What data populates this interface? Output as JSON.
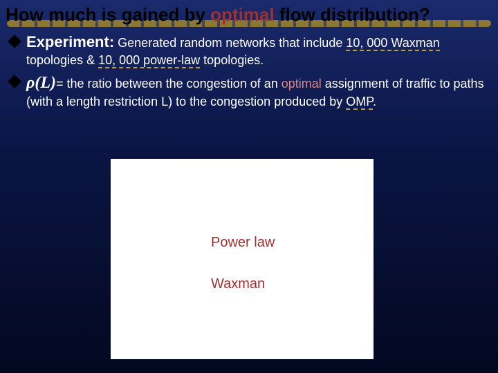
{
  "title": {
    "prefix": "How much is gained by ",
    "highlight": "optimal",
    "suffix": " flow distribution?"
  },
  "bullet1": {
    "lead": "Experiment:",
    "text1": " Generated random networks that include  ",
    "count1": "10, 000 Waxman",
    "text2": "topologies & ",
    "count2": "10, 000 power-law",
    "text3": " topologies."
  },
  "bullet2": {
    "symbol": "ρ(L)",
    "text1": "= the ratio between the congestion of an ",
    "opt": "optimal",
    "text2": " assignment of traffic to paths (with a length restriction L) to the congestion produced by ",
    "omp": "OMP",
    "text3": "."
  },
  "chart": {
    "background_color": "#ffffff",
    "legend_power": "Power law",
    "legend_wax": "Waxman",
    "legend_color": "#a03030",
    "legend_fontsize": 20
  },
  "colors": {
    "title_text": "#000000",
    "highlight_word": "#993333",
    "body_text": "#ffffff",
    "background_top": "#1a2a6c",
    "background_bottom": "#030820"
  }
}
